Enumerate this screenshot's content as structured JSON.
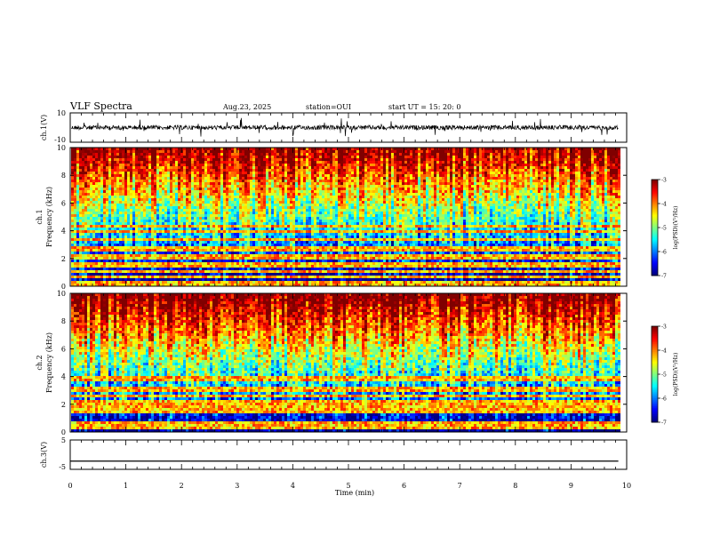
{
  "header": {
    "title": "VLF Spectra",
    "date": "Aug.23, 2025",
    "station": "station=OUI",
    "start_time": "start  UT =   15: 20: 0"
  },
  "chart_data": [
    {
      "id": "ch1-waveform",
      "type": "line",
      "ylabel": "ch.1(V)",
      "ylim": [
        -10,
        10
      ],
      "yticks": [
        "10",
        "-10"
      ],
      "xlim": [
        0,
        10
      ],
      "description_series": "dense noisy waveform centred near 0 V with occasional spikes to about +/-8 V"
    },
    {
      "id": "ch1-spectrogram",
      "type": "heatmap",
      "ylabel": "ch.1\nFrequency (kHz)",
      "ylim": [
        0,
        10
      ],
      "yticks": [
        "0",
        "2",
        "4",
        "6",
        "8",
        "10"
      ],
      "xlim": [
        0,
        9.85
      ],
      "colorbar": {
        "label": "log(PSD)(V²/Hz)",
        "range": [
          -7,
          -3
        ],
        "ticks": [
          "-3",
          "-4",
          "-5",
          "-6",
          "-7"
        ]
      }
    },
    {
      "id": "ch2-spectrogram",
      "type": "heatmap",
      "ylabel": "ch.2\nFrequency (kHz)",
      "ylim": [
        0,
        10
      ],
      "yticks": [
        "0",
        "2",
        "4",
        "6",
        "8",
        "10"
      ],
      "xlim": [
        0,
        9.85
      ],
      "colorbar": {
        "label": "log(PSD)(V²/Hz)",
        "range": [
          -7,
          -3
        ],
        "ticks": [
          "-3",
          "-4",
          "-5",
          "-6",
          "-7"
        ]
      }
    },
    {
      "id": "ch3-waveform",
      "type": "line",
      "ylabel": "ch.3(V)",
      "ylim": [
        -5,
        5
      ],
      "yticks": [
        "5",
        "-5"
      ],
      "x": [
        0,
        9.85
      ],
      "y": [
        -2.2,
        -2.2
      ]
    }
  ],
  "xaxis": {
    "label": "Time (min)",
    "ticks": [
      "0",
      "1",
      "2",
      "3",
      "4",
      "5",
      "6",
      "7",
      "8",
      "9",
      "10"
    ],
    "range": [
      0,
      10
    ]
  }
}
